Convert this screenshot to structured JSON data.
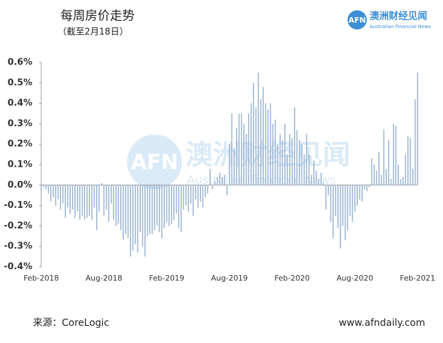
{
  "header": {
    "title": "每周房价走势",
    "subtitle": "（截至2月18日）",
    "logo_mark": "AFN",
    "logo_cn": "澳洲财经见闻",
    "logo_en": "Australian Financial News"
  },
  "footer": {
    "source": "来源：CoreLogic",
    "site": "www.afndaily.com"
  },
  "chart_data": {
    "type": "bar",
    "color": "#9db6d3",
    "categories": [
      "Feb-2018",
      null,
      null,
      null,
      null,
      null,
      null,
      null,
      null,
      null,
      null,
      null,
      null,
      null,
      null,
      null,
      null,
      null,
      null,
      null,
      null,
      null,
      null,
      null,
      null,
      null,
      "Aug-2018",
      null,
      null,
      null,
      null,
      null,
      null,
      null,
      null,
      null,
      null,
      null,
      null,
      null,
      null,
      null,
      null,
      null,
      null,
      null,
      null,
      null,
      null,
      null,
      null,
      null,
      "Feb-2019",
      null,
      null,
      null,
      null,
      null,
      null,
      null,
      null,
      null,
      null,
      null,
      null,
      null,
      null,
      null,
      null,
      null,
      null,
      null,
      null,
      null,
      null,
      null,
      null,
      null,
      "Aug-2019",
      null,
      null,
      null,
      null,
      null,
      null,
      null,
      null,
      null,
      null,
      null,
      null,
      null,
      null,
      null,
      null,
      null,
      null,
      null,
      null,
      null,
      null,
      null,
      null,
      null,
      "Feb-2020",
      null,
      null,
      null,
      null,
      null,
      null,
      null,
      null,
      null,
      null,
      null,
      null,
      null,
      null,
      null,
      null,
      null,
      null,
      null,
      null,
      null,
      null,
      null,
      null,
      null,
      "Aug-2020",
      null,
      null,
      null,
      null,
      null,
      null,
      null,
      null,
      null,
      null,
      null,
      null,
      null,
      null,
      null,
      null,
      null,
      null,
      null,
      null,
      null,
      null,
      null,
      null,
      null,
      "Feb-2021"
    ],
    "values": [
      -0.03,
      -0.01,
      -0.02,
      -0.04,
      -0.08,
      -0.06,
      -0.1,
      -0.07,
      -0.12,
      -0.09,
      -0.16,
      -0.11,
      -0.14,
      -0.12,
      -0.16,
      -0.13,
      -0.17,
      -0.15,
      -0.17,
      -0.16,
      -0.15,
      -0.17,
      -0.11,
      -0.22,
      -0.13,
      0.01,
      -0.15,
      -0.12,
      -0.18,
      -0.09,
      -0.17,
      -0.2,
      -0.19,
      -0.22,
      -0.27,
      -0.24,
      -0.26,
      -0.35,
      -0.32,
      -0.29,
      -0.33,
      -0.23,
      -0.3,
      -0.35,
      -0.25,
      -0.24,
      -0.24,
      -0.22,
      -0.2,
      -0.23,
      -0.26,
      -0.21,
      -0.18,
      -0.2,
      -0.19,
      -0.17,
      -0.14,
      -0.21,
      -0.23,
      -0.12,
      -0.1,
      -0.13,
      -0.09,
      -0.15,
      -0.07,
      -0.11,
      -0.08,
      -0.11,
      -0.06,
      -0.04,
      0.08,
      -0.02,
      0.02,
      0.04,
      0.06,
      0.04,
      0.05,
      -0.05,
      0.2,
      0.35,
      0.18,
      0.28,
      0.35,
      0.35,
      0.3,
      0.25,
      0.35,
      0.4,
      0.5,
      0.38,
      0.55,
      0.42,
      0.48,
      0.4,
      0.37,
      0.4,
      0.3,
      0.32,
      0.2,
      0.25,
      0.22,
      0.3,
      0.15,
      0.25,
      0.23,
      0.38,
      0.27,
      0.22,
      0.2,
      0.15,
      0.25,
      0.15,
      0.05,
      0.12,
      0.07,
      0.03,
      0.06,
      0.01,
      -0.12,
      -0.05,
      -0.18,
      -0.26,
      -0.15,
      -0.21,
      -0.31,
      -0.2,
      -0.27,
      -0.22,
      -0.15,
      -0.18,
      -0.13,
      -0.1,
      -0.07,
      -0.08,
      -0.02,
      -0.03,
      -0.01,
      0.13,
      0.1,
      0.07,
      0.16,
      0.05,
      0.27,
      0.08,
      0.22,
      0.03,
      0.3,
      0.29,
      0.1,
      0.03,
      0.04,
      0.15,
      0.24,
      0.23,
      0.08,
      0.42,
      0.55
    ],
    "ylim": [
      -0.4,
      0.6
    ],
    "yticks": [
      {
        "value": -0.4,
        "label": "-0.4%"
      },
      {
        "value": -0.3,
        "label": "-0.3%"
      },
      {
        "value": -0.2,
        "label": "-0.2%"
      },
      {
        "value": -0.1,
        "label": "-0.1%"
      },
      {
        "value": 0,
        "label": "0.0%"
      },
      {
        "value": 0.1,
        "label": "0.1%"
      },
      {
        "value": 0.2,
        "label": "0.2%"
      },
      {
        "value": 0.3,
        "label": "0.3%"
      },
      {
        "value": 0.4,
        "label": "0.4%"
      },
      {
        "value": 0.5,
        "label": "0.5%"
      },
      {
        "value": 0.6,
        "label": "0.6%"
      }
    ],
    "grid": false
  }
}
